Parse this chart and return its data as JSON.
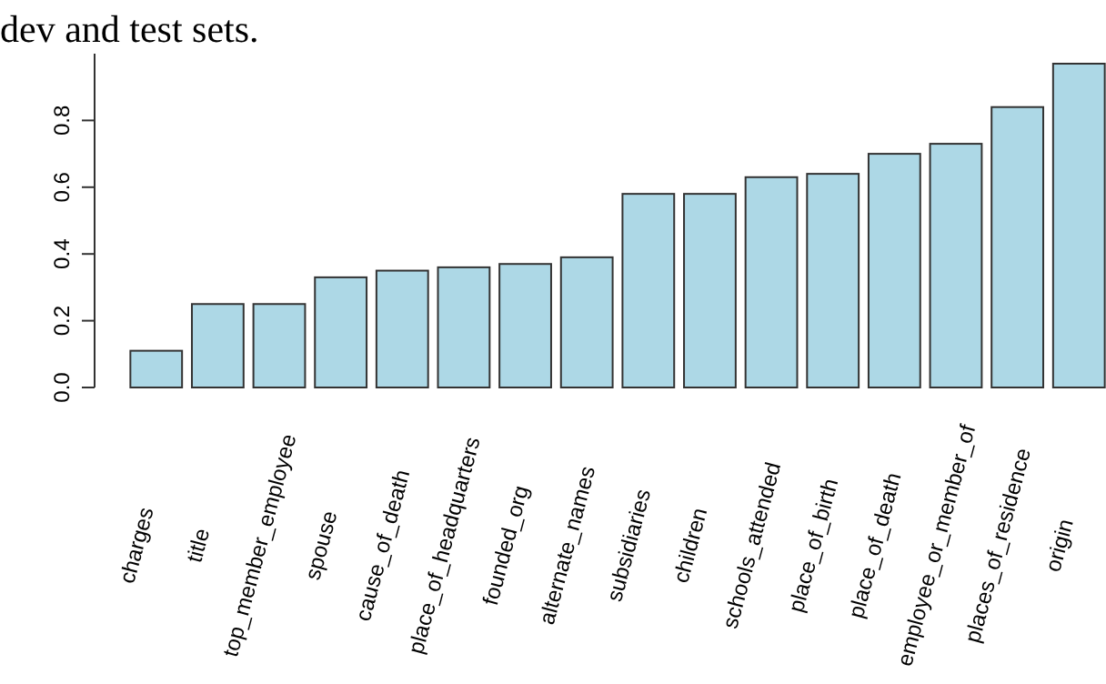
{
  "chart_data": {
    "type": "bar",
    "annotations": [
      "dev and test sets."
    ],
    "categories": [
      "charges",
      "title",
      "top_member_employee",
      "spouse",
      "cause_of_death",
      "place_of_headquarters",
      "founded_org",
      "alternate_names",
      "subsidiaries",
      "children",
      "schools_attended",
      "place_of_birth",
      "place_of_death",
      "employee_or_member_of",
      "places_of_residence",
      "origin"
    ],
    "values": [
      0.11,
      0.25,
      0.25,
      0.33,
      0.35,
      0.36,
      0.37,
      0.39,
      0.58,
      0.58,
      0.63,
      0.64,
      0.7,
      0.73,
      0.84,
      0.97
    ],
    "color": "#add8e6",
    "ylim": [
      0,
      1
    ],
    "yticks": [
      {
        "value": 0,
        "label": "0.0"
      },
      0.2,
      0.4,
      0.6,
      0.8
    ],
    "grid": false
  }
}
